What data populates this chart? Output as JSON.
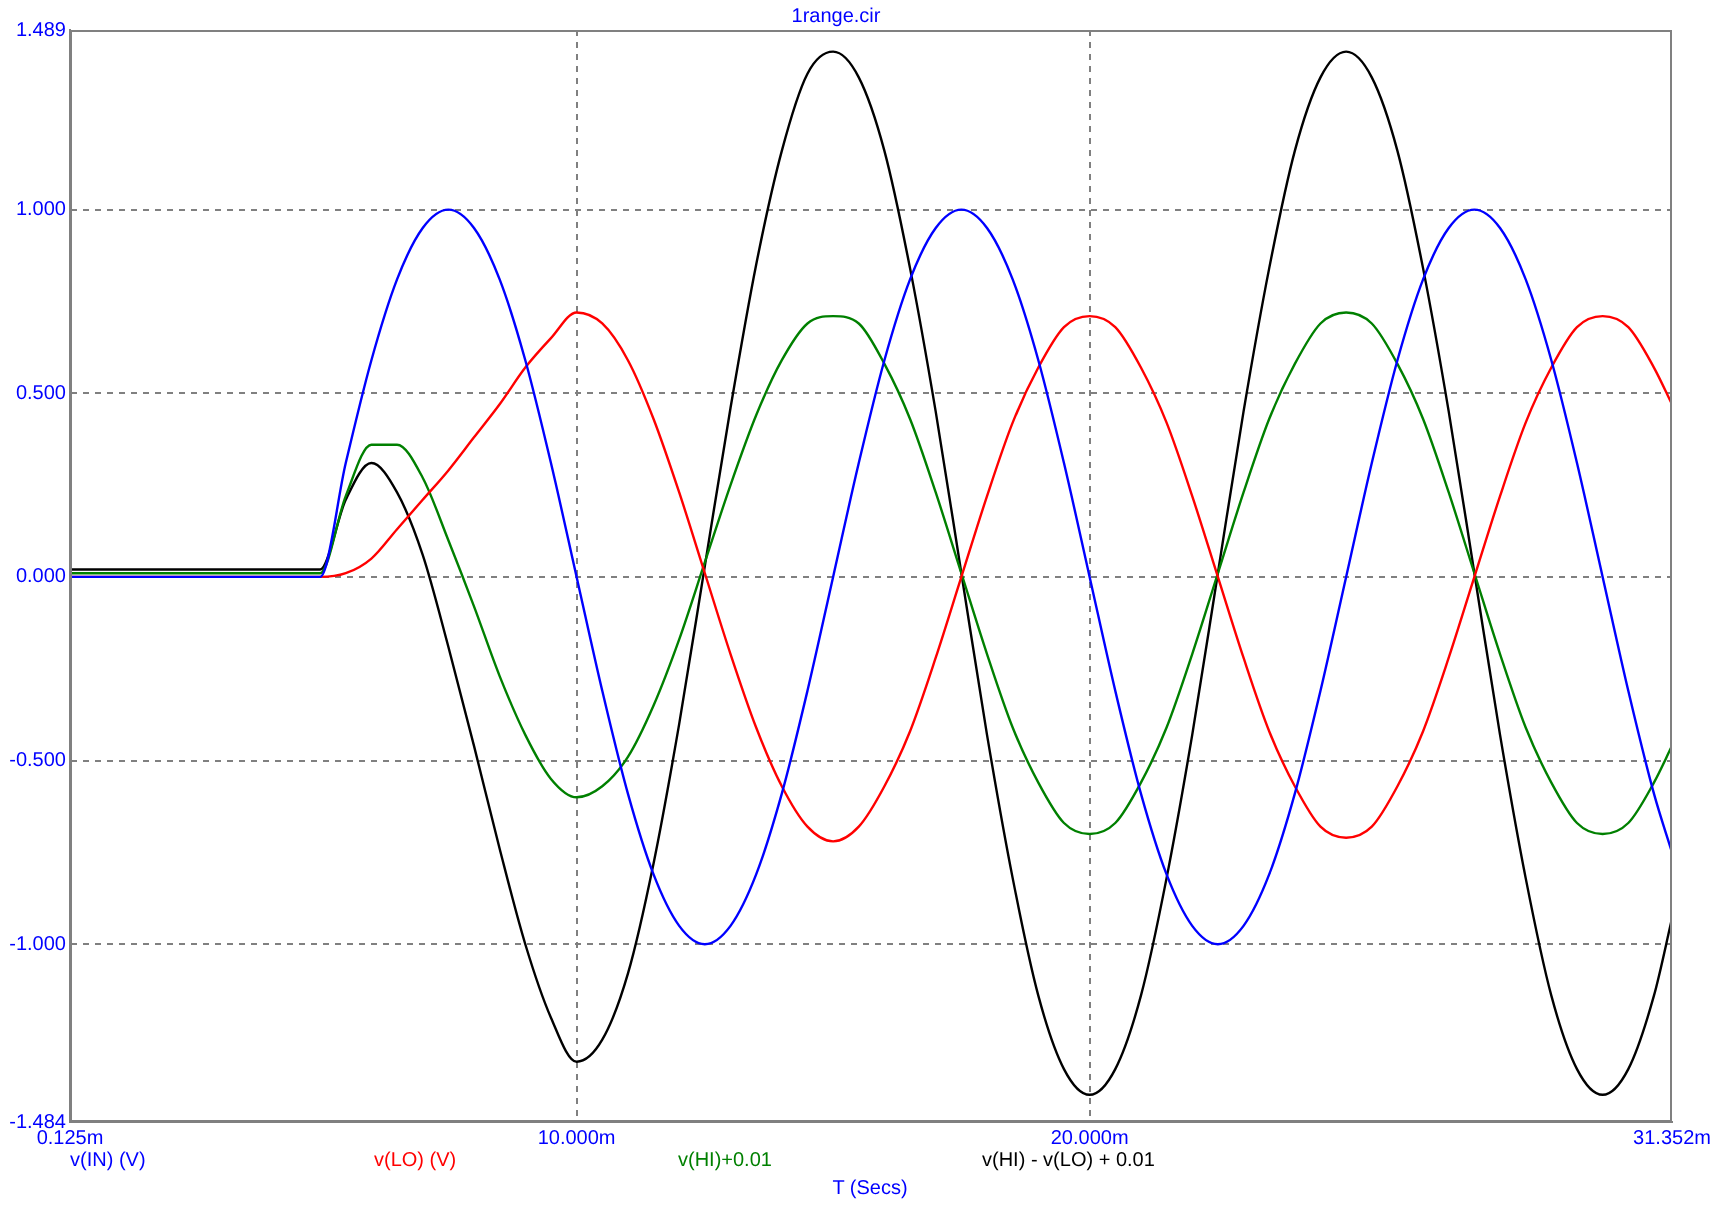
{
  "chart_data": {
    "type": "line",
    "title": "1range.cir",
    "xlabel": "T (Secs)",
    "x": [
      0.125,
      5,
      5.5,
      6,
      6.5,
      7,
      7.5,
      8,
      8.5,
      9,
      9.5,
      10,
      10.5,
      11,
      11.5,
      12,
      12.5,
      13,
      13.5,
      14,
      14.5,
      15,
      15.5,
      16,
      16.5,
      17,
      17.5,
      18,
      18.5,
      19,
      19.5,
      20,
      20.5,
      21,
      21.5,
      22,
      22.5,
      23,
      23.5,
      24,
      24.5,
      25,
      25.5,
      26,
      26.5,
      27,
      27.5,
      28,
      28.5,
      29,
      29.5,
      30,
      30.5,
      31,
      31.352
    ],
    "series": [
      {
        "name": "v(IN) (V)",
        "color": "#0000ff",
        "values": [
          0,
          0,
          0.31,
          0.59,
          0.81,
          0.95,
          1,
          0.95,
          0.81,
          0.59,
          0.31,
          0,
          -0.31,
          -0.59,
          -0.81,
          -0.95,
          -1,
          -0.95,
          -0.81,
          -0.59,
          -0.31,
          0,
          0.31,
          0.59,
          0.81,
          0.95,
          1,
          0.95,
          0.81,
          0.59,
          0.31,
          0,
          -0.31,
          -0.59,
          -0.81,
          -0.95,
          -1,
          -0.95,
          -0.81,
          -0.59,
          -0.31,
          0,
          0.31,
          0.59,
          0.81,
          0.95,
          1,
          0.95,
          0.81,
          0.59,
          0.31,
          0,
          -0.31,
          -0.59,
          -0.75
        ]
      },
      {
        "name": "v(LO) (V)",
        "color": "#ff0000",
        "values": [
          0,
          0,
          0.01,
          0.05,
          0.13,
          0.21,
          0.29,
          0.38,
          0.47,
          0.57,
          0.65,
          0.72,
          0.69,
          0.59,
          0.43,
          0.23,
          0.01,
          -0.21,
          -0.41,
          -0.57,
          -0.68,
          -0.72,
          -0.68,
          -0.57,
          -0.42,
          -0.22,
          0,
          0.22,
          0.42,
          0.57,
          0.68,
          0.71,
          0.68,
          0.57,
          0.42,
          0.22,
          0,
          -0.22,
          -0.42,
          -0.57,
          -0.68,
          -0.71,
          -0.68,
          -0.57,
          -0.42,
          -0.22,
          0,
          0.22,
          0.42,
          0.57,
          0.68,
          0.71,
          0.68,
          0.57,
          0.47
        ]
      },
      {
        "name": "v(HI)+0.01",
        "color": "#008000",
        "values": [
          0.01,
          0.01,
          0.22,
          0.36,
          0.36,
          0.27,
          0.1,
          -0.08,
          -0.27,
          -0.43,
          -0.55,
          -0.6,
          -0.57,
          -0.49,
          -0.35,
          -0.17,
          0.04,
          0.25,
          0.44,
          0.59,
          0.69,
          0.71,
          0.69,
          0.58,
          0.43,
          0.23,
          0.01,
          -0.21,
          -0.41,
          -0.56,
          -0.67,
          -0.7,
          -0.67,
          -0.56,
          -0.41,
          -0.21,
          0.01,
          0.23,
          0.43,
          0.58,
          0.69,
          0.72,
          0.69,
          0.58,
          0.43,
          0.23,
          0.01,
          -0.21,
          -0.41,
          -0.56,
          -0.67,
          -0.7,
          -0.67,
          -0.56,
          -0.46
        ]
      },
      {
        "name": "v(HI) - v(LO) + 0.01",
        "color": "#000000",
        "values": [
          0.02,
          0.02,
          0.21,
          0.31,
          0.23,
          0.06,
          -0.19,
          -0.46,
          -0.74,
          -1,
          -1.2,
          -1.32,
          -1.26,
          -1.08,
          -0.78,
          -0.4,
          0.03,
          0.46,
          0.85,
          1.16,
          1.37,
          1.43,
          1.36,
          1.16,
          0.84,
          0.45,
          0.01,
          -0.43,
          -0.82,
          -1.14,
          -1.34,
          -1.41,
          -1.34,
          -1.14,
          -0.82,
          -0.43,
          0.01,
          0.45,
          0.84,
          1.16,
          1.36,
          1.43,
          1.36,
          1.16,
          0.84,
          0.45,
          0.01,
          -0.43,
          -0.82,
          -1.14,
          -1.34,
          -1.41,
          -1.34,
          -1.14,
          -0.93
        ]
      }
    ],
    "xlim": [
      0.125,
      31.352
    ],
    "xticks": [
      {
        "value": 0.125,
        "label": "0.125m"
      },
      {
        "value": 10,
        "label": "10.000m"
      },
      {
        "value": 20,
        "label": "20.000m"
      },
      {
        "value": 31.352,
        "label": "31.352m"
      }
    ],
    "ylim": [
      -1.484,
      1.489
    ],
    "yticks": [
      {
        "value": -1.484,
        "label": "-1.484"
      },
      {
        "value": -1,
        "label": "-1.000"
      },
      {
        "value": -0.5,
        "label": "-0.500"
      },
      {
        "value": 0,
        "label": "0.000"
      },
      {
        "value": 0.5,
        "label": "0.500"
      },
      {
        "value": 1,
        "label": "1.000"
      },
      {
        "value": 1.489,
        "label": "1.489"
      }
    ],
    "grid": true,
    "legend": "bottom",
    "marker": "none",
    "line_style": "solid"
  }
}
